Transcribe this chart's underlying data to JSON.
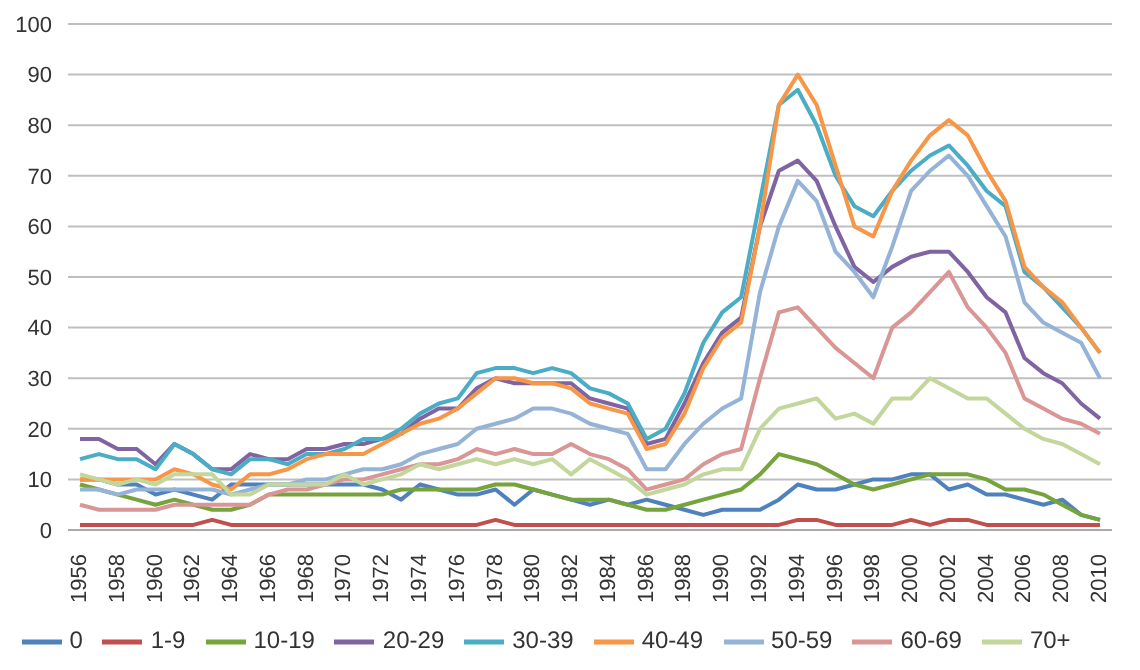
{
  "chart_data": {
    "type": "line",
    "categories": [
      "1956",
      null,
      "1958",
      null,
      "1960",
      null,
      "1962",
      null,
      "1964",
      null,
      "1966",
      null,
      "1968",
      null,
      "1970",
      null,
      "1972",
      null,
      "1974",
      null,
      "1976",
      null,
      "1978",
      null,
      "1980",
      null,
      "1982",
      null,
      "1984",
      null,
      "1986",
      null,
      "1988",
      null,
      "1990",
      null,
      "1992",
      null,
      "1994",
      null,
      "1996",
      null,
      "1998",
      null,
      "2000",
      null,
      "2002",
      null,
      "2004",
      null,
      "2006",
      null,
      "2008",
      null,
      "2010"
    ],
    "ylim": [
      0,
      100
    ],
    "yticks": [
      0,
      10,
      20,
      30,
      40,
      50,
      60,
      70,
      80,
      90,
      100
    ],
    "grid": "y",
    "legend": "bottom",
    "marker": "none",
    "series": [
      {
        "name": "0",
        "color": "#4f81bd",
        "values": [
          10,
          10,
          9,
          9,
          7,
          8,
          7,
          6,
          9,
          9,
          9,
          9,
          9,
          9,
          9,
          9,
          8,
          6,
          9,
          8,
          7,
          7,
          8,
          5,
          8,
          7,
          6,
          5,
          6,
          5,
          6,
          5,
          4,
          3,
          4,
          4,
          4,
          6,
          9,
          8,
          8,
          9,
          10,
          10,
          11,
          11,
          8,
          9,
          7,
          7,
          6,
          5,
          6,
          3,
          2
        ]
      },
      {
        "name": "1-9",
        "color": "#c0504d",
        "values": [
          1,
          1,
          1,
          1,
          1,
          1,
          1,
          2,
          1,
          1,
          1,
          1,
          1,
          1,
          1,
          1,
          1,
          1,
          1,
          1,
          1,
          1,
          2,
          1,
          1,
          1,
          1,
          1,
          1,
          1,
          1,
          1,
          1,
          1,
          1,
          1,
          1,
          1,
          2,
          2,
          1,
          1,
          1,
          1,
          2,
          1,
          2,
          2,
          1,
          1,
          1,
          1,
          1,
          1,
          1
        ]
      },
      {
        "name": "10-19",
        "color": "#77a33c",
        "values": [
          9,
          8,
          7,
          6,
          5,
          6,
          5,
          4,
          4,
          5,
          7,
          7,
          7,
          7,
          7,
          7,
          7,
          8,
          8,
          8,
          8,
          8,
          9,
          9,
          8,
          7,
          6,
          6,
          6,
          5,
          4,
          4,
          5,
          6,
          7,
          8,
          11,
          15,
          14,
          13,
          11,
          9,
          8,
          9,
          10,
          11,
          11,
          11,
          10,
          8,
          8,
          7,
          5,
          3,
          2
        ]
      },
      {
        "name": "20-29",
        "color": "#8064a2",
        "values": [
          18,
          18,
          16,
          16,
          13,
          17,
          15,
          12,
          12,
          15,
          14,
          14,
          16,
          16,
          17,
          17,
          18,
          19,
          22,
          24,
          24,
          28,
          30,
          29,
          29,
          29,
          29,
          26,
          25,
          24,
          17,
          18,
          25,
          33,
          39,
          42,
          60,
          71,
          73,
          69,
          60,
          52,
          49,
          52,
          54,
          55,
          55,
          51,
          46,
          43,
          34,
          31,
          29,
          25,
          22
        ]
      },
      {
        "name": "30-39",
        "color": "#4bacc6",
        "values": [
          14,
          15,
          14,
          14,
          12,
          17,
          15,
          12,
          11,
          14,
          14,
          13,
          15,
          15,
          16,
          18,
          18,
          20,
          23,
          25,
          26,
          31,
          32,
          32,
          31,
          32,
          31,
          28,
          27,
          25,
          18,
          20,
          27,
          37,
          43,
          46,
          65,
          84,
          87,
          80,
          70,
          64,
          62,
          67,
          71,
          74,
          76,
          72,
          67,
          64,
          51,
          48,
          44,
          40,
          35
        ]
      },
      {
        "name": "40-49",
        "color": "#f79646",
        "values": [
          10,
          10,
          10,
          10,
          10,
          12,
          11,
          9,
          8,
          11,
          11,
          12,
          14,
          15,
          15,
          15,
          17,
          19,
          21,
          22,
          24,
          27,
          30,
          30,
          29,
          29,
          28,
          25,
          24,
          23,
          16,
          17,
          23,
          32,
          38,
          41,
          60,
          84,
          90,
          84,
          72,
          60,
          58,
          67,
          73,
          78,
          81,
          78,
          71,
          65,
          52,
          48,
          45,
          40,
          35
        ]
      },
      {
        "name": "50-59",
        "color": "#95b3d7",
        "values": [
          8,
          8,
          7,
          8,
          8,
          8,
          8,
          8,
          7,
          8,
          9,
          9,
          10,
          10,
          11,
          12,
          12,
          13,
          15,
          16,
          17,
          20,
          21,
          22,
          24,
          24,
          23,
          21,
          20,
          19,
          12,
          12,
          17,
          21,
          24,
          26,
          47,
          60,
          69,
          65,
          55,
          51,
          46,
          56,
          67,
          71,
          74,
          70,
          64,
          58,
          45,
          41,
          39,
          37,
          30
        ]
      },
      {
        "name": "60-69",
        "color": "#d99694",
        "values": [
          5,
          4,
          4,
          4,
          4,
          5,
          5,
          5,
          5,
          5,
          7,
          8,
          8,
          9,
          10,
          10,
          11,
          12,
          13,
          13,
          14,
          16,
          15,
          16,
          15,
          15,
          17,
          15,
          14,
          12,
          8,
          9,
          10,
          13,
          15,
          16,
          30,
          43,
          44,
          40,
          36,
          33,
          30,
          40,
          43,
          47,
          51,
          44,
          40,
          35,
          26,
          24,
          22,
          21,
          19
        ]
      },
      {
        "name": "70+",
        "color": "#c3d69b",
        "values": [
          11,
          10,
          9,
          10,
          9,
          11,
          11,
          11,
          7,
          7,
          9,
          9,
          9,
          9,
          11,
          9,
          10,
          11,
          13,
          12,
          13,
          14,
          13,
          14,
          13,
          14,
          11,
          14,
          12,
          10,
          7,
          8,
          9,
          11,
          12,
          12,
          20,
          24,
          25,
          26,
          22,
          23,
          21,
          26,
          26,
          30,
          28,
          26,
          26,
          23,
          20,
          18,
          17,
          15,
          13
        ]
      }
    ]
  }
}
